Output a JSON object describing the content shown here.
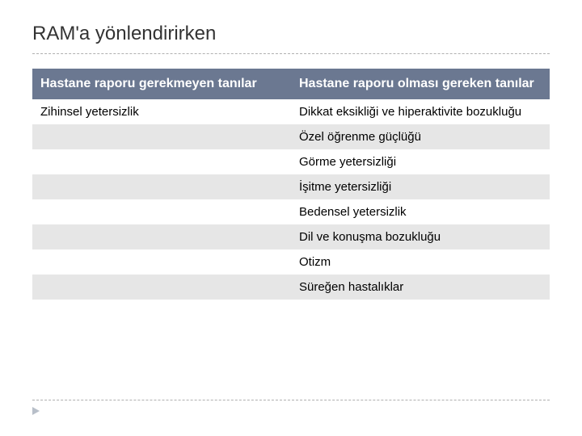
{
  "title": "RAM'a yönlendirirken",
  "table": {
    "headers": {
      "col1": "Hastane raporu gerekmeyen tanılar",
      "col2": "Hastane raporu olması gereken tanılar"
    },
    "rows": [
      {
        "col1": "Zihinsel yetersizlik",
        "col2": "Dikkat eksikliği ve hiperaktivite bozukluğu",
        "striped": false
      },
      {
        "col1": "",
        "col2": "Özel öğrenme güçlüğü",
        "striped": true
      },
      {
        "col1": "",
        "col2": "Görme yetersizliği",
        "striped": false
      },
      {
        "col1": "",
        "col2": "İşitme yetersizliği",
        "striped": true
      },
      {
        "col1": "",
        "col2": "Bedensel yetersizlik",
        "striped": false
      },
      {
        "col1": "",
        "col2": "Dil ve konuşma bozukluğu",
        "striped": true
      },
      {
        "col1": "",
        "col2": "Otizm",
        "striped": false
      },
      {
        "col1": "",
        "col2": "Süreğen hastalıklar",
        "striped": true
      }
    ]
  },
  "colors": {
    "header_bg": "#6b7891",
    "header_text": "#ffffff",
    "stripe_bg": "#e6e6e6",
    "text": "#000000",
    "title": "#333333",
    "dash": "#b0b0b0",
    "marker": "#b8bfc9"
  }
}
